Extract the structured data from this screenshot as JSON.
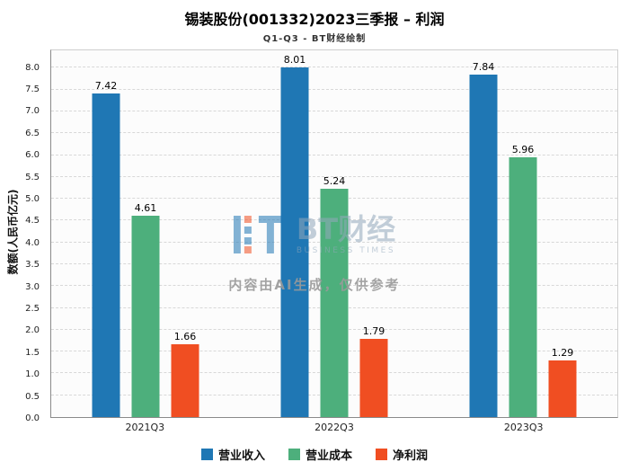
{
  "header": {
    "title": "锡装股份(001332)2023三季报 – 利润",
    "subtitle": "Q1-Q3 - BT财经绘制"
  },
  "watermark": {
    "brand": "BT财经",
    "brand_sub": "BUSINESS TIMES",
    "notice": "内容由AI生成，仅供参考"
  },
  "chart_data": {
    "type": "bar",
    "title": "锡装股份(001332)2023三季报 – 利润",
    "subtitle": "Q1-Q3 - BT财经绘制",
    "categories": [
      "2021Q3",
      "2022Q3",
      "2023Q3"
    ],
    "series": [
      {
        "name": "营业收入",
        "color": "#1f77b4",
        "values": [
          7.42,
          8.01,
          7.84
        ]
      },
      {
        "name": "营业成本",
        "color": "#4daf7c",
        "values": [
          4.61,
          5.24,
          5.96
        ]
      },
      {
        "name": "净利润",
        "color": "#f04e22",
        "values": [
          1.66,
          1.79,
          1.29
        ]
      }
    ],
    "xlabel": "",
    "ylabel": "数额(人民币亿元)",
    "ylim": [
      0,
      8.4
    ],
    "yticks": [
      0.0,
      0.5,
      1.0,
      1.5,
      2.0,
      2.5,
      3.0,
      3.5,
      4.0,
      4.5,
      5.0,
      5.5,
      6.0,
      6.5,
      7.0,
      7.5,
      8.0
    ],
    "grid": true,
    "grid_style": "dashed",
    "legend_position": "bottom"
  }
}
